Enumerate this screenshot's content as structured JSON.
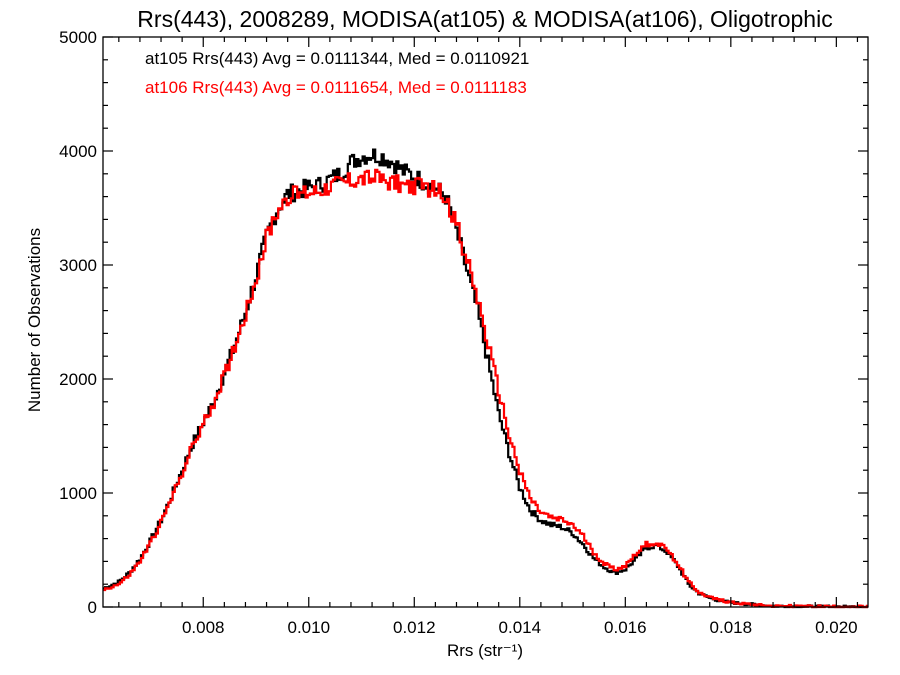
{
  "chart_data": {
    "type": "line",
    "title": "Rrs(443), 2008289, MODISA(at105) & MODISA(at106), Oligotrophic",
    "xlabel": "Rrs (str⁻¹)",
    "ylabel": "Number of Observations",
    "xlim": [
      0.0061,
      0.0206
    ],
    "ylim": [
      0,
      5000
    ],
    "x_ticks": [
      0.008,
      0.01,
      0.012,
      0.014,
      0.016,
      0.018,
      0.02
    ],
    "x_tick_labels": [
      "0.008",
      "0.010",
      "0.012",
      "0.014",
      "0.016",
      "0.018",
      "0.020"
    ],
    "y_ticks": [
      0,
      1000,
      2000,
      3000,
      4000,
      5000
    ],
    "y_tick_labels": [
      "0",
      "1000",
      "2000",
      "3000",
      "4000",
      "5000"
    ],
    "grid": false,
    "annotations": [
      {
        "text": "at105 Rrs(443) Avg = 0.0111344, Med = 0.0110921",
        "color": "#000000"
      },
      {
        "text": "at106 Rrs(443) Avg = 0.0111654, Med = 0.0111183",
        "color": "#ff0000"
      }
    ],
    "series": [
      {
        "color": "#000000",
        "x": [
          0.0061,
          0.0064,
          0.0066,
          0.0068,
          0.007,
          0.0072,
          0.0074,
          0.0076,
          0.0078,
          0.008,
          0.0082,
          0.0084,
          0.0086,
          0.0088,
          0.009,
          0.0092,
          0.0094,
          0.0096,
          0.0098,
          0.01,
          0.0102,
          0.0104,
          0.0106,
          0.0108,
          0.011,
          0.0112,
          0.0114,
          0.0116,
          0.0118,
          0.012,
          0.0122,
          0.0124,
          0.0126,
          0.0128,
          0.013,
          0.0132,
          0.0134,
          0.0136,
          0.0138,
          0.014,
          0.0142,
          0.0144,
          0.0146,
          0.0148,
          0.015,
          0.0152,
          0.0154,
          0.0156,
          0.0158,
          0.016,
          0.0162,
          0.0164,
          0.0166,
          0.0168,
          0.017,
          0.0172,
          0.0174,
          0.0176,
          0.0178,
          0.018,
          0.0182,
          0.0184,
          0.0186,
          0.0188,
          0.019,
          0.0195,
          0.02,
          0.0206
        ],
        "values": [
          160,
          220,
          300,
          420,
          580,
          760,
          970,
          1200,
          1430,
          1620,
          1800,
          2050,
          2300,
          2580,
          2900,
          3250,
          3480,
          3620,
          3650,
          3680,
          3700,
          3750,
          3800,
          3900,
          3950,
          3970,
          3950,
          3900,
          3820,
          3780,
          3720,
          3680,
          3600,
          3300,
          2950,
          2600,
          2150,
          1700,
          1350,
          1050,
          850,
          760,
          720,
          700,
          650,
          550,
          430,
          350,
          300,
          330,
          420,
          520,
          540,
          480,
          360,
          200,
          120,
          80,
          55,
          40,
          30,
          22,
          15,
          10,
          8,
          5,
          3,
          2
        ]
      },
      {
        "color": "#ff0000",
        "x": [
          0.0061,
          0.0064,
          0.0066,
          0.0068,
          0.007,
          0.0072,
          0.0074,
          0.0076,
          0.0078,
          0.008,
          0.0082,
          0.0084,
          0.0086,
          0.0088,
          0.009,
          0.0092,
          0.0094,
          0.0096,
          0.0098,
          0.01,
          0.0102,
          0.0104,
          0.0106,
          0.0108,
          0.011,
          0.0112,
          0.0114,
          0.0116,
          0.0118,
          0.012,
          0.0122,
          0.0124,
          0.0126,
          0.0128,
          0.013,
          0.0132,
          0.0134,
          0.0136,
          0.0138,
          0.014,
          0.0142,
          0.0144,
          0.0146,
          0.0148,
          0.015,
          0.0152,
          0.0154,
          0.0156,
          0.0158,
          0.016,
          0.0162,
          0.0164,
          0.0166,
          0.0168,
          0.017,
          0.0172,
          0.0174,
          0.0176,
          0.0178,
          0.018,
          0.0182,
          0.0184,
          0.0186,
          0.0188,
          0.019,
          0.0195,
          0.02,
          0.0206
        ],
        "values": [
          150,
          200,
          280,
          400,
          560,
          740,
          950,
          1180,
          1410,
          1600,
          1790,
          2030,
          2290,
          2570,
          2880,
          3230,
          3470,
          3600,
          3620,
          3640,
          3660,
          3700,
          3720,
          3740,
          3760,
          3760,
          3750,
          3730,
          3700,
          3690,
          3680,
          3660,
          3600,
          3350,
          3050,
          2700,
          2300,
          1900,
          1500,
          1200,
          950,
          830,
          780,
          760,
          720,
          620,
          480,
          380,
          330,
          360,
          470,
          550,
          560,
          500,
          380,
          220,
          130,
          85,
          60,
          42,
          32,
          24,
          16,
          11,
          8,
          5,
          3,
          2
        ]
      }
    ]
  }
}
